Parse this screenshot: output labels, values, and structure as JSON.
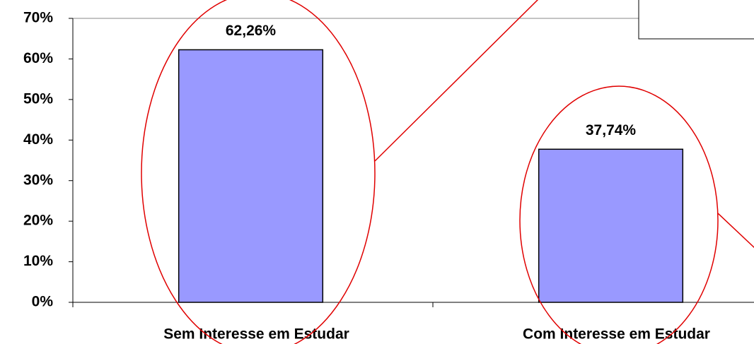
{
  "chart_data": {
    "type": "bar",
    "categories": [
      "Sem Interesse em Estudar",
      "Com Interesse em Estudar"
    ],
    "values": [
      62.26,
      37.74
    ],
    "value_labels": [
      "62,26%",
      "37,74%"
    ],
    "color": "#9999ff",
    "ylim": [
      0,
      70
    ],
    "yticks": [
      {
        "value": 0,
        "label": "0%"
      },
      {
        "value": 10,
        "label": "10%"
      },
      {
        "value": 20,
        "label": "20%"
      },
      {
        "value": 30,
        "label": "30%"
      },
      {
        "value": 40,
        "label": "40%"
      },
      {
        "value": 50,
        "label": "50%"
      },
      {
        "value": 60,
        "label": "60%"
      },
      {
        "value": 70,
        "label": "70%"
      }
    ]
  }
}
